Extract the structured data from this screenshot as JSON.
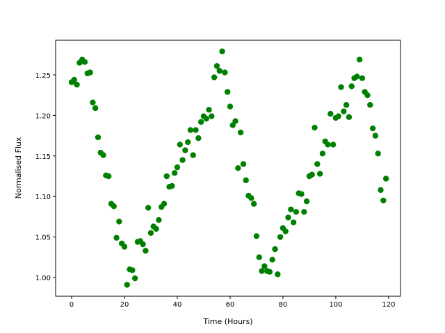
{
  "chart_data": {
    "type": "scatter",
    "x_label": "Time (Hours)",
    "y_label": "Normalised Flux",
    "color": "#008000",
    "x": [
      0,
      1,
      2,
      3,
      4,
      5,
      6,
      7,
      8,
      9,
      10,
      11,
      12,
      13,
      14,
      15,
      16,
      17,
      18,
      19,
      20,
      21,
      22,
      23,
      24,
      25,
      26,
      27,
      28,
      29,
      30,
      31,
      32,
      33,
      34,
      35,
      36,
      37,
      38,
      39,
      40,
      41,
      42,
      43,
      44,
      45,
      46,
      47,
      48,
      49,
      50,
      51,
      52,
      53,
      54,
      55,
      56,
      57,
      58,
      59,
      60,
      61,
      62,
      63,
      64,
      65,
      66,
      67,
      68,
      69,
      70,
      71,
      72,
      73,
      74,
      75,
      76,
      77,
      78,
      79,
      80,
      81,
      82,
      83,
      84,
      85,
      86,
      87,
      88,
      89,
      90,
      91,
      92,
      93,
      94,
      95,
      96,
      97,
      98,
      99,
      100,
      101,
      102,
      103,
      104,
      105,
      106,
      107,
      108,
      109,
      110,
      111,
      112,
      113,
      114,
      115,
      116,
      117,
      118,
      119
    ],
    "values": [
      1.241,
      1.244,
      1.238,
      1.265,
      1.269,
      1.266,
      1.252,
      1.253,
      1.216,
      1.209,
      1.173,
      1.154,
      1.151,
      1.126,
      1.125,
      1.091,
      1.088,
      1.049,
      1.069,
      1.042,
      1.038,
      0.991,
      1.01,
      1.009,
      0.999,
      1.044,
      1.045,
      1.041,
      1.033,
      1.086,
      1.055,
      1.063,
      1.06,
      1.071,
      1.087,
      1.091,
      1.125,
      1.112,
      1.113,
      1.129,
      1.136,
      1.164,
      1.145,
      1.157,
      1.167,
      1.182,
      1.151,
      1.182,
      1.172,
      1.192,
      1.199,
      1.196,
      1.207,
      1.199,
      1.247,
      1.261,
      1.255,
      1.279,
      1.253,
      1.229,
      1.211,
      1.188,
      1.193,
      1.135,
      1.179,
      1.14,
      1.12,
      1.101,
      1.098,
      1.091,
      1.051,
      1.025,
      1.008,
      1.014,
      1.008,
      1.007,
      1.022,
      1.035,
      1.004,
      1.05,
      1.061,
      1.057,
      1.074,
      1.084,
      1.068,
      1.081,
      1.104,
      1.103,
      1.081,
      1.094,
      1.125,
      1.127,
      1.185,
      1.14,
      1.128,
      1.153,
      1.168,
      1.164,
      1.202,
      1.164,
      1.197,
      1.199,
      1.235,
      1.205,
      1.213,
      1.198,
      1.236,
      1.246,
      1.248,
      1.269,
      1.246,
      1.229,
      1.225,
      1.213,
      1.184,
      1.175,
      1.153,
      1.108,
      1.095,
      1.122
    ],
    "xlim": [
      -6.05,
      124.5
    ],
    "ylim": [
      0.9769,
      1.2928
    ],
    "xticks": [
      0,
      20,
      40,
      60,
      80,
      100,
      120
    ],
    "yticks": [
      {
        "value": 1.0,
        "label": "1.00"
      },
      {
        "value": 1.05,
        "label": "1.05"
      },
      {
        "value": 1.1,
        "label": "1.10"
      },
      {
        "value": 1.15,
        "label": "1.15"
      },
      {
        "value": 1.2,
        "label": "1.20"
      },
      {
        "value": 1.25,
        "label": "1.25"
      }
    ],
    "grid": false
  }
}
